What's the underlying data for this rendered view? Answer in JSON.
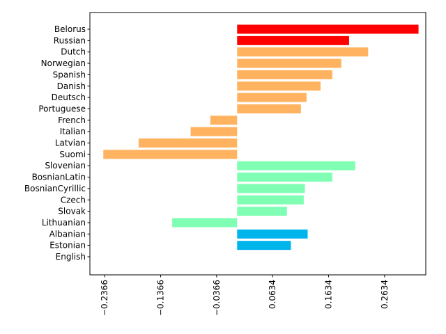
{
  "chart_data": {
    "type": "bar",
    "orientation": "horizontal",
    "title": "",
    "xlabel": "",
    "ylabel": "",
    "grid": false,
    "xlim": [
      -0.263,
      0.337
    ],
    "categories": [
      "Belorus",
      "Russian",
      "Dutch",
      "Norwegian",
      "Spanish",
      "Danish",
      "Deutsch",
      "Portuguese",
      "French",
      "Italian",
      "Latvian",
      "Suomi",
      "Slovenian",
      "BosnianLatin",
      "BosnianCyrillic",
      "Czech",
      "Slovak",
      "Lithuanian",
      "Albanian",
      "Estonian",
      "English"
    ],
    "values": [
      0.324,
      0.2,
      0.234,
      0.186,
      0.17,
      0.149,
      0.124,
      0.114,
      -0.048,
      -0.083,
      -0.176,
      -0.239,
      0.211,
      0.17,
      0.121,
      0.119,
      0.089,
      -0.116,
      0.126,
      0.096,
      0.0
    ],
    "colors": [
      "#ff0000",
      "#ff0000",
      "#ffb360",
      "#ffb360",
      "#ffb360",
      "#ffb360",
      "#ffb360",
      "#ffb360",
      "#ffb360",
      "#ffb360",
      "#ffb360",
      "#ffb360",
      "#80ffb4",
      "#80ffb4",
      "#80ffb4",
      "#80ffb4",
      "#80ffb4",
      "#80ffb4",
      "#00b4ec",
      "#00b4ec",
      "#00b4ec"
    ],
    "xticks": [
      -0.2366,
      -0.1366,
      -0.0366,
      0.0634,
      0.1634,
      0.2634
    ],
    "xtick_labels": [
      "−0.2366",
      "−0.1366",
      "−0.0366",
      "0.0634",
      "0.1634",
      "0.2634"
    ]
  }
}
